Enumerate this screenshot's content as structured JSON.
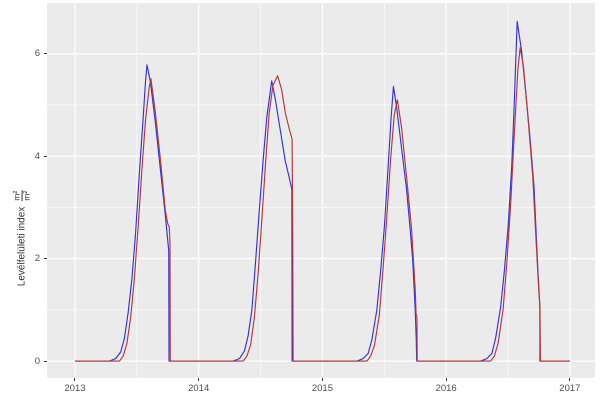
{
  "figure": {
    "title": "",
    "legend": "none"
  },
  "chart_data": {
    "type": "line",
    "title": "",
    "xlabel": "",
    "ylabel": "Levélfelületi index",
    "ylabel_units_numerator": "m²",
    "ylabel_units_denominator": "m²",
    "x_tick_labels": [
      "2013",
      "2014",
      "2015",
      "2016",
      "2017"
    ],
    "x_ticks": [
      2013,
      2014,
      2015,
      2016,
      2017
    ],
    "x_minor_ticks": [
      2013.5,
      2014.5,
      2015.5,
      2016.5
    ],
    "y_tick_labels": [
      "0",
      "2",
      "4",
      "6"
    ],
    "y_ticks": [
      0,
      2,
      4,
      6
    ],
    "y_minor_ticks": [
      1,
      3,
      5
    ],
    "xlim": [
      2012.774,
      2017.203
    ],
    "ylim": [
      -0.33,
      6.99
    ],
    "grid": "major+minor",
    "legend_position": "none",
    "colors": {
      "panel_background": "#EBEBEB",
      "grid": "#FFFFFF",
      "axis_text": "#4D4D4D",
      "tick_mark": "#333333",
      "series_blue": "#3232DC",
      "series_red": "#B0383C"
    },
    "series": [
      {
        "name": "series-blue",
        "color_key": "series_blue",
        "points": [
          [
            2013.0,
            0
          ],
          [
            2013.28,
            0
          ],
          [
            2013.33,
            0.05
          ],
          [
            2013.37,
            0.18
          ],
          [
            2013.4,
            0.45
          ],
          [
            2013.43,
            0.95
          ],
          [
            2013.46,
            1.6
          ],
          [
            2013.49,
            2.5
          ],
          [
            2013.52,
            3.65
          ],
          [
            2013.55,
            4.7
          ],
          [
            2013.57,
            5.45
          ],
          [
            2013.582,
            5.78
          ],
          [
            2013.61,
            5.45
          ],
          [
            2013.65,
            4.65
          ],
          [
            2013.69,
            3.75
          ],
          [
            2013.73,
            2.85
          ],
          [
            2013.758,
            2.15
          ],
          [
            2013.76,
            0
          ],
          [
            2014.0,
            0
          ],
          [
            2014.28,
            0
          ],
          [
            2014.33,
            0.05
          ],
          [
            2014.37,
            0.2
          ],
          [
            2014.4,
            0.5
          ],
          [
            2014.43,
            1.0
          ],
          [
            2014.46,
            1.95
          ],
          [
            2014.49,
            2.95
          ],
          [
            2014.52,
            3.9
          ],
          [
            2014.55,
            4.75
          ],
          [
            2014.59,
            5.47
          ],
          [
            2014.62,
            5.1
          ],
          [
            2014.66,
            4.5
          ],
          [
            2014.7,
            3.9
          ],
          [
            2014.73,
            3.6
          ],
          [
            2014.753,
            3.35
          ],
          [
            2014.755,
            0
          ],
          [
            2015.0,
            0
          ],
          [
            2015.28,
            0
          ],
          [
            2015.33,
            0.05
          ],
          [
            2015.37,
            0.15
          ],
          [
            2015.4,
            0.42
          ],
          [
            2015.44,
            1.0
          ],
          [
            2015.47,
            1.75
          ],
          [
            2015.5,
            2.6
          ],
          [
            2015.53,
            3.75
          ],
          [
            2015.555,
            4.75
          ],
          [
            2015.574,
            5.36
          ],
          [
            2015.6,
            4.95
          ],
          [
            2015.64,
            4.15
          ],
          [
            2015.68,
            3.35
          ],
          [
            2015.71,
            2.55
          ],
          [
            2015.73,
            1.95
          ],
          [
            2015.75,
            1.0
          ],
          [
            2015.758,
            0.45
          ],
          [
            2015.762,
            0
          ],
          [
            2016.0,
            0
          ],
          [
            2016.28,
            0
          ],
          [
            2016.33,
            0.05
          ],
          [
            2016.37,
            0.15
          ],
          [
            2016.4,
            0.45
          ],
          [
            2016.44,
            1.05
          ],
          [
            2016.47,
            1.75
          ],
          [
            2016.5,
            2.6
          ],
          [
            2016.53,
            3.8
          ],
          [
            2016.55,
            5.0
          ],
          [
            2016.574,
            6.63
          ],
          [
            2016.61,
            6.05
          ],
          [
            2016.645,
            5.2
          ],
          [
            2016.68,
            4.3
          ],
          [
            2016.71,
            3.4
          ],
          [
            2016.74,
            1.85
          ],
          [
            2016.753,
            1.25
          ],
          [
            2016.757,
            1.08
          ],
          [
            2016.758,
            0
          ],
          [
            2017.0,
            0
          ]
        ]
      },
      {
        "name": "series-red",
        "color_key": "series_red",
        "points": [
          [
            2013.0,
            0
          ],
          [
            2013.36,
            0
          ],
          [
            2013.39,
            0.1
          ],
          [
            2013.42,
            0.35
          ],
          [
            2013.45,
            0.85
          ],
          [
            2013.48,
            1.6
          ],
          [
            2013.51,
            2.6
          ],
          [
            2013.54,
            3.7
          ],
          [
            2013.57,
            4.7
          ],
          [
            2013.6,
            5.35
          ],
          [
            2013.614,
            5.51
          ],
          [
            2013.65,
            4.85
          ],
          [
            2013.69,
            3.95
          ],
          [
            2013.73,
            2.95
          ],
          [
            2013.75,
            2.68
          ],
          [
            2013.762,
            2.62
          ],
          [
            2013.768,
            2.3
          ],
          [
            2013.77,
            0
          ],
          [
            2014.0,
            0
          ],
          [
            2014.36,
            0
          ],
          [
            2014.39,
            0.1
          ],
          [
            2014.42,
            0.32
          ],
          [
            2014.45,
            0.85
          ],
          [
            2014.48,
            1.7
          ],
          [
            2014.51,
            2.75
          ],
          [
            2014.54,
            3.85
          ],
          [
            2014.57,
            4.85
          ],
          [
            2014.6,
            5.38
          ],
          [
            2014.638,
            5.57
          ],
          [
            2014.67,
            5.3
          ],
          [
            2014.7,
            4.85
          ],
          [
            2014.73,
            4.55
          ],
          [
            2014.755,
            4.33
          ],
          [
            2014.76,
            2.6
          ],
          [
            2014.763,
            0
          ],
          [
            2015.0,
            0
          ],
          [
            2015.36,
            0
          ],
          [
            2015.39,
            0.1
          ],
          [
            2015.42,
            0.3
          ],
          [
            2015.46,
            0.9
          ],
          [
            2015.49,
            1.8
          ],
          [
            2015.52,
            2.8
          ],
          [
            2015.55,
            3.9
          ],
          [
            2015.58,
            4.8
          ],
          [
            2015.606,
            5.1
          ],
          [
            2015.64,
            4.55
          ],
          [
            2015.68,
            3.6
          ],
          [
            2015.72,
            2.6
          ],
          [
            2015.75,
            1.4
          ],
          [
            2015.757,
            0.92
          ],
          [
            2015.764,
            0.86
          ],
          [
            2015.766,
            0
          ],
          [
            2016.0,
            0
          ],
          [
            2016.36,
            0
          ],
          [
            2016.39,
            0.1
          ],
          [
            2016.42,
            0.35
          ],
          [
            2016.46,
            1.0
          ],
          [
            2016.49,
            1.9
          ],
          [
            2016.52,
            3.0
          ],
          [
            2016.55,
            4.4
          ],
          [
            2016.58,
            5.7
          ],
          [
            2016.598,
            6.12
          ],
          [
            2016.625,
            5.75
          ],
          [
            2016.66,
            4.8
          ],
          [
            2016.7,
            3.6
          ],
          [
            2016.73,
            2.2
          ],
          [
            2016.75,
            1.32
          ],
          [
            2016.758,
            1.07
          ],
          [
            2016.762,
            0
          ],
          [
            2017.0,
            0
          ]
        ]
      }
    ]
  }
}
